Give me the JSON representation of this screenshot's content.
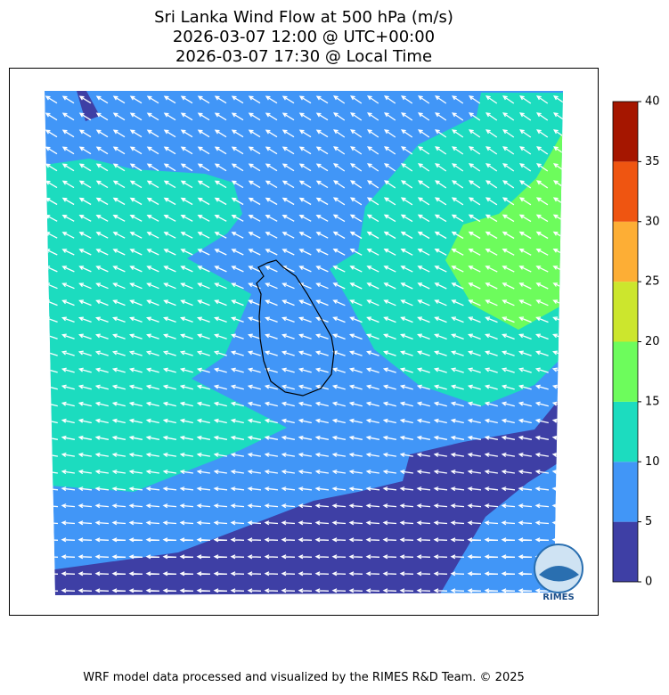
{
  "title": [
    "Sri Lanka Wind Flow at 500 hPa (m/s)",
    "2026-03-07 12:00 @ UTC+00:00",
    "2026-03-07 17:30 @ Local Time"
  ],
  "colorbar": {
    "ticks": [
      0,
      5,
      10,
      15,
      20,
      25,
      30,
      35,
      40
    ],
    "colors": [
      "#3e3fa5",
      "#4196f7",
      "#1cdcbf",
      "#6dfc5c",
      "#cce62d",
      "#fdae35",
      "#ef5511",
      "#a51600"
    ]
  },
  "logo": "RIMES",
  "footer": "WRF model data processed and visualized by the RIMES R&D Team. © 2025"
}
